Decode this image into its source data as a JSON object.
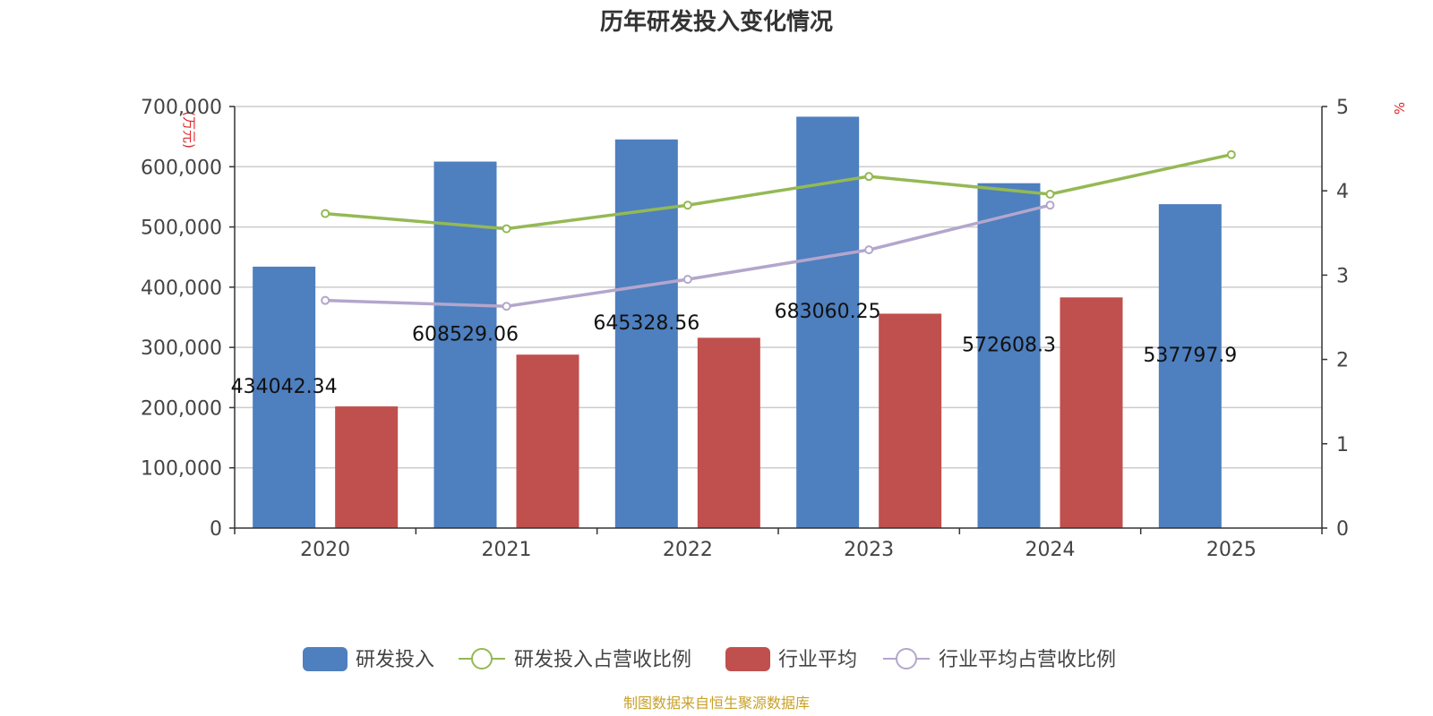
{
  "chart_data": {
    "type": "bar",
    "title": "历年研发投入变化情况",
    "categories": [
      "2020",
      "2021",
      "2022",
      "2023",
      "2024",
      "2025"
    ],
    "y_left": {
      "unit": "(万元)",
      "ylim": [
        0,
        700000
      ],
      "ticks": [
        "0",
        "100,000",
        "200,000",
        "300,000",
        "400,000",
        "500,000",
        "600,000",
        "700,000"
      ]
    },
    "y_right": {
      "unit": "%",
      "ylim": [
        0,
        5
      ],
      "ticks": [
        "0",
        "1",
        "2",
        "3",
        "4",
        "5"
      ]
    },
    "grid": true,
    "legend_position": "bottom",
    "series": [
      {
        "name": "研发投入",
        "kind": "bar",
        "axis": "left",
        "color": "#4e7fbf",
        "values": [
          434042.34,
          608529.06,
          645328.56,
          683060.25,
          572608.3,
          537797.9
        ],
        "labels": [
          "434042.34",
          "608529.06",
          "645328.56",
          "683060.25",
          "572608.3",
          "537797.9"
        ]
      },
      {
        "name": "研发投入占营收比例",
        "kind": "line",
        "axis": "right",
        "color": "#94b954",
        "values": [
          3.73,
          3.55,
          3.83,
          4.17,
          3.96,
          4.43
        ]
      },
      {
        "name": "行业平均",
        "kind": "bar",
        "axis": "left",
        "color": "#c0504d",
        "values": [
          202000,
          288000,
          316000,
          356000,
          383000,
          null
        ]
      },
      {
        "name": "行业平均占营收比例",
        "kind": "line",
        "axis": "right",
        "color": "#b3a6cc",
        "values": [
          2.7,
          2.63,
          2.95,
          3.3,
          3.83,
          null
        ]
      }
    ]
  },
  "footer": {
    "source": "制图数据来自恒生聚源数据库"
  }
}
